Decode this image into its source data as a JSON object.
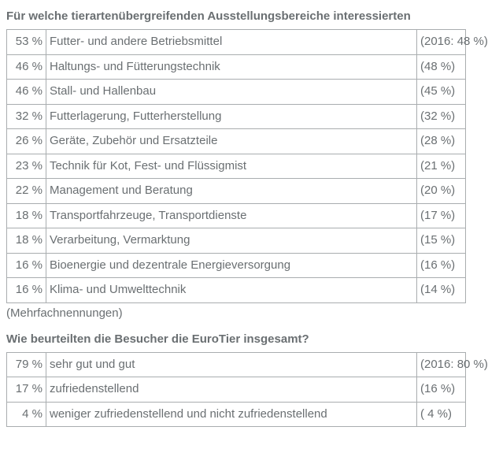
{
  "colors": {
    "text": "#6a6f72",
    "border": "#a9adaf",
    "background": "#ffffff"
  },
  "typography": {
    "heading_fontsize": 15,
    "heading_weight": "bold",
    "body_fontsize": 15
  },
  "section1": {
    "heading": "Für welche tierartenübergreifenden Ausstellungsbereiche interessierten",
    "rows": [
      {
        "pct": "53 %",
        "label": "Futter- und andere Betriebsmittel",
        "ref": "(2016: 48 %)"
      },
      {
        "pct": "46 %",
        "label": "Haltungs- und Fütterungstechnik",
        "ref": "(48 %)"
      },
      {
        "pct": "46 %",
        "label": "Stall- und Hallenbau",
        "ref": "(45 %)"
      },
      {
        "pct": "32 %",
        "label": "Futterlagerung, Futterherstellung",
        "ref": "(32 %)"
      },
      {
        "pct": "26 %",
        "label": "Geräte, Zubehör und Ersatzteile",
        "ref": "(28 %)"
      },
      {
        "pct": "23 %",
        "label": "Technik für Kot, Fest- und Flüssigmist",
        "ref": "(21 %)"
      },
      {
        "pct": "22 %",
        "label": "Management und Beratung",
        "ref": "(20 %)"
      },
      {
        "pct": "18 %",
        "label": "Transportfahrzeuge, Transportdienste",
        "ref": "(17 %)"
      },
      {
        "pct": "18 %",
        "label": "Verarbeitung, Vermarktung",
        "ref": "(15 %)"
      },
      {
        "pct": "16 %",
        "label": "Bioenergie und dezentrale Energieversorgung",
        "ref": "(16 %)"
      },
      {
        "pct": "16 %",
        "label": "Klima- und Umwelttechnik",
        "ref": "(14 %)"
      }
    ],
    "note": "(Mehrfachnennungen)"
  },
  "section2": {
    "heading": "Wie beurteilten die Besucher die EuroTier insgesamt?",
    "rows": [
      {
        "pct": "79 %",
        "label": "sehr gut und gut",
        "ref": "(2016: 80 %)"
      },
      {
        "pct": "17 %",
        "label": "zufriedenstellend",
        "ref": "(16 %)"
      },
      {
        "pct": "  4 %",
        "label": "weniger zufriedenstellend und nicht zufriedenstellend",
        "ref": "(  4 %)"
      }
    ]
  }
}
